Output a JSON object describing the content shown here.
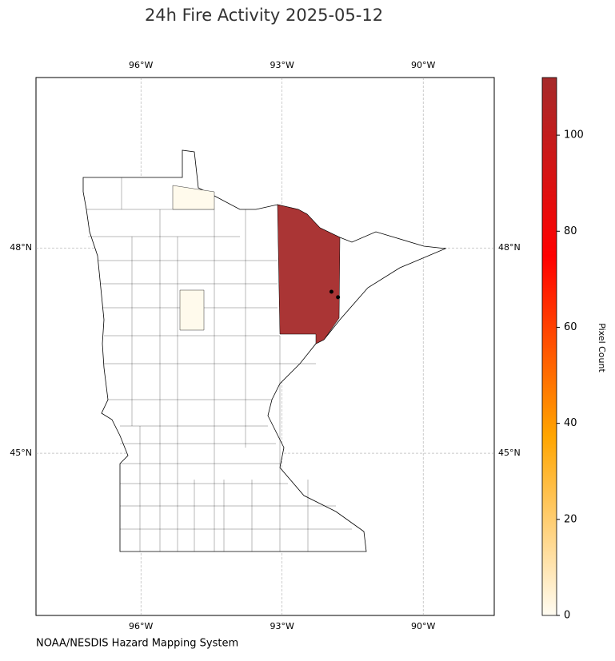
{
  "title": "24h Fire Activity 2025-05-12",
  "map": {
    "lonlim": [
      -98.23,
      -88.49
    ],
    "latlim": [
      42.63,
      50.49
    ],
    "lon_ticks": [
      {
        "value": -96,
        "label": "96°W"
      },
      {
        "value": -93,
        "label": "93°W"
      },
      {
        "value": -90,
        "label": "90°W"
      }
    ],
    "lat_ticks": [
      {
        "value": 45,
        "label": "45°N"
      },
      {
        "value": 48,
        "label": "48°N"
      }
    ],
    "grid": true,
    "regions": [
      {
        "value": 112
      },
      {
        "value": 1
      },
      {
        "value": 1
      }
    ],
    "fires": [
      {
        "lon": -91.95,
        "lat": 47.36
      },
      {
        "lon": -91.81,
        "lat": 47.28
      }
    ],
    "fire_color": "#000000"
  },
  "colorbar": {
    "label": "Pixel Count",
    "lim": [
      0,
      112
    ],
    "ticks": [
      0,
      20,
      40,
      60,
      80,
      100
    ],
    "colors": [
      "#fffcf2",
      "#ffa500",
      "#ff0000",
      "#a52a2a"
    ]
  },
  "credit": "NOAA/NESDIS Hazard Mapping System"
}
